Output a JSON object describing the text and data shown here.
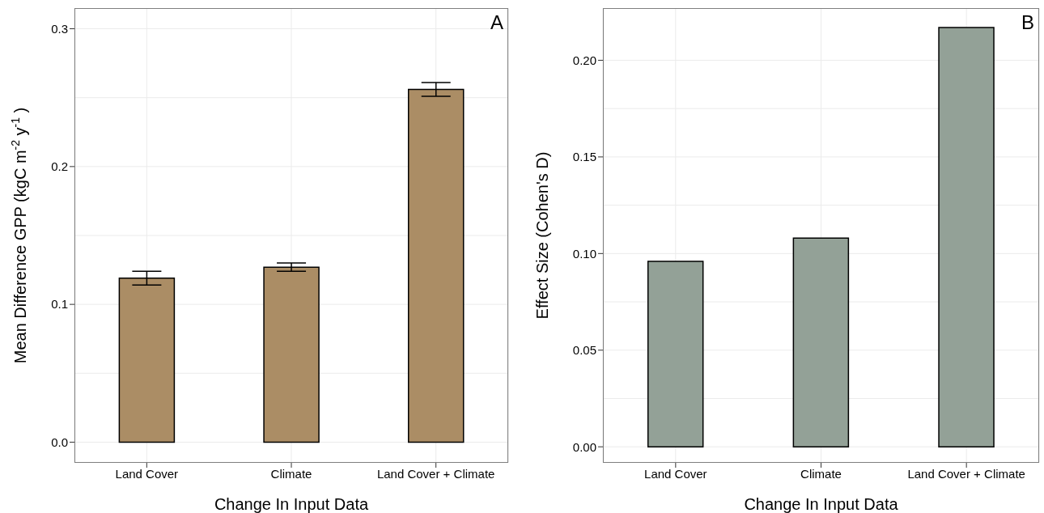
{
  "chart_data": [
    {
      "type": "bar",
      "categories": [
        "Land Cover",
        "Climate",
        "Land Cover + Climate"
      ],
      "values": [
        0.119,
        0.127,
        0.256
      ],
      "errors": [
        0.005,
        0.003,
        0.005
      ],
      "color": "#ab8d65",
      "xlabel": "Change In Input Data",
      "ylabel": "Mean Difference GPP (kgC m$^{-2}$ y$^{-1}$)",
      "ylim": [
        -0.015,
        0.315
      ],
      "yticks": [
        {
          "value": 0,
          "label": "0.0"
        },
        0.1,
        0.2,
        0.3
      ],
      "grid": true,
      "annotations": [
        "A"
      ]
    },
    {
      "type": "bar",
      "categories": [
        "Land Cover",
        "Climate",
        "Land Cover + Climate"
      ],
      "values": [
        0.096,
        0.108,
        0.217
      ],
      "color": "#93a197",
      "xlabel": "Change In Input Data",
      "ylabel": "Effect Size (Cohen's D)",
      "ylim": [
        -0.0083,
        0.227
      ],
      "yticks": [
        {
          "value": 0,
          "label": "0.00"
        },
        {
          "value": 0.05,
          "label": "0.05"
        },
        {
          "value": 0.1,
          "label": "0.10"
        },
        {
          "value": 0.15,
          "label": "0.15"
        },
        {
          "value": 0.2,
          "label": "0.20"
        }
      ],
      "grid": true,
      "annotations": [
        "B"
      ]
    }
  ]
}
